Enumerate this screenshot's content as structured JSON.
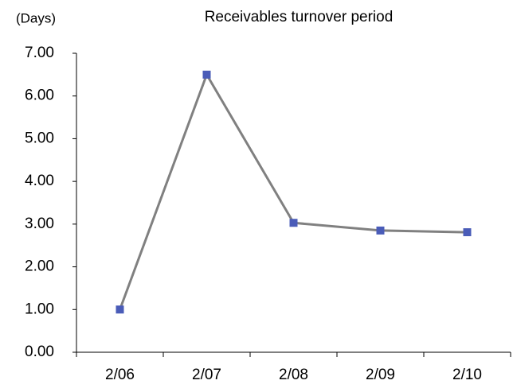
{
  "chart_data": {
    "type": "line",
    "title": "Receivables turnover period",
    "y_label": "(Days)",
    "categories": [
      "2/06",
      "2/07",
      "2/08",
      "2/09",
      "2/10"
    ],
    "series": [
      {
        "name": "Receivables turnover period",
        "color": "#808080",
        "marker_color": "#4a5cb8",
        "values": [
          1.0,
          6.5,
          3.03,
          2.85,
          2.81
        ]
      }
    ],
    "ylim": [
      0,
      7
    ],
    "yticks": [
      {
        "value": 0,
        "label": "0.00"
      },
      {
        "value": 1,
        "label": "1.00"
      },
      {
        "value": 2,
        "label": "2.00"
      },
      {
        "value": 3,
        "label": "3.00"
      },
      {
        "value": 4,
        "label": "4.00"
      },
      {
        "value": 5,
        "label": "5.00"
      },
      {
        "value": 6,
        "label": "6.00"
      },
      {
        "value": 7,
        "label": "7.00"
      }
    ],
    "grid": false,
    "legend": false
  }
}
